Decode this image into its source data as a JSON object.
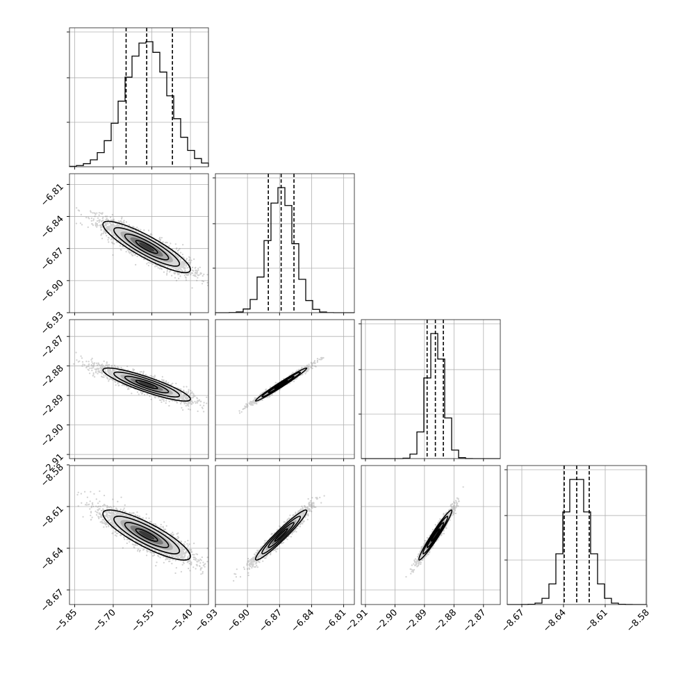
{
  "chart_data": {
    "type": "corner",
    "title": "",
    "grid": true,
    "parameters": [
      {
        "index": 0,
        "label": "",
        "median": -5.57,
        "quantile_16": -5.65,
        "quantile_84": -5.47,
        "std": 0.085,
        "range": [
          -5.87,
          -5.33
        ],
        "ticks": [
          -5.85,
          -5.7,
          -5.55,
          -5.4
        ],
        "tick_labels": [
          "−5.85",
          "−5.70",
          "−5.55",
          "−5.40"
        ]
      },
      {
        "index": 1,
        "label": "",
        "median": -6.8685,
        "quantile_16": -6.8805,
        "quantile_84": -6.8565,
        "std": 0.012,
        "range": [
          -6.93,
          -6.8
        ],
        "ticks": [
          -6.93,
          -6.9,
          -6.87,
          -6.84,
          -6.81
        ],
        "tick_labels": [
          "−6.93",
          "−6.90",
          "−6.87",
          "−6.84",
          "−6.81"
        ]
      },
      {
        "index": 2,
        "label": "",
        "median": -2.8863,
        "quantile_16": -2.8891,
        "quantile_84": -2.8836,
        "std": 0.0028,
        "range": [
          -2.9114,
          -2.8643
        ],
        "ticks": [
          -2.91,
          -2.9,
          -2.89,
          -2.88,
          -2.87
        ],
        "tick_labels": [
          "−2.91",
          "−2.90",
          "−2.89",
          "−2.88",
          "−2.87"
        ]
      },
      {
        "index": 3,
        "label": "",
        "median": -8.6305,
        "quantile_16": -8.6395,
        "quantile_84": -8.6215,
        "std": 0.009,
        "range": [
          -8.6805,
          -8.5805
        ],
        "ticks": [
          -8.67,
          -8.64,
          -8.61,
          -8.58
        ],
        "tick_labels": [
          "−8.67",
          "−8.64",
          "−8.61",
          "−8.58"
        ]
      }
    ],
    "correlations": [
      {
        "x": 0,
        "y": 1,
        "rho": -0.88
      },
      {
        "x": 0,
        "y": 2,
        "rho": -0.88
      },
      {
        "x": 0,
        "y": 3,
        "rho": -0.85
      },
      {
        "x": 1,
        "y": 2,
        "rho": 0.985
      },
      {
        "x": 1,
        "y": 3,
        "rho": 0.96
      },
      {
        "x": 2,
        "y": 3,
        "rho": 0.97
      }
    ],
    "histogram_bins": 20,
    "contour_levels_sigma": [
      0.5,
      1.0,
      1.5,
      2.0
    ]
  }
}
